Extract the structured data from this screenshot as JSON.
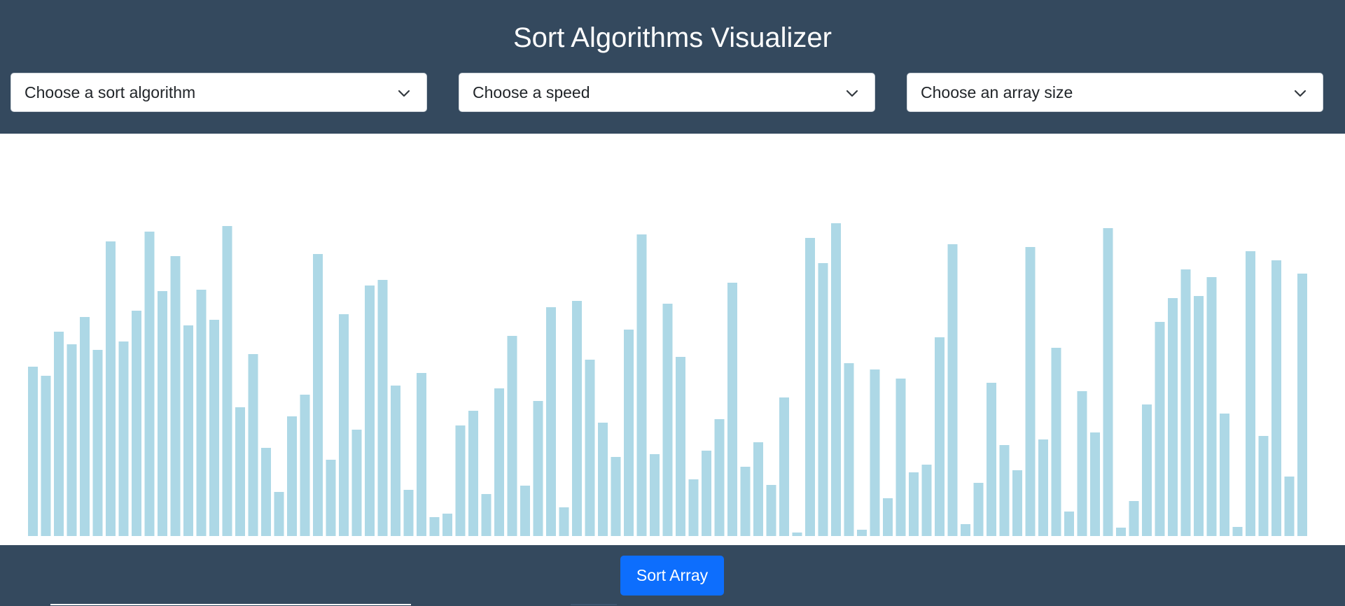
{
  "header": {
    "title": "Sort Algorithms Visualizer"
  },
  "selects": {
    "algorithm": {
      "value": "Choose a sort algorithm"
    },
    "speed": {
      "value": "Choose a speed"
    },
    "size": {
      "value": "Choose an array size"
    }
  },
  "footer": {
    "sort_label": "Sort Array"
  },
  "colors": {
    "header_bg": "#34495e",
    "bar": "#add8e6",
    "button": "#0d6efd"
  },
  "chart_data": {
    "type": "bar",
    "values": [
      242,
      229,
      292,
      274,
      313,
      266,
      421,
      278,
      322,
      435,
      350,
      400,
      301,
      352,
      309,
      443,
      184,
      260,
      126,
      63,
      171,
      202,
      403,
      109,
      317,
      152,
      358,
      366,
      215,
      66,
      233,
      27,
      32,
      158,
      179,
      60,
      211,
      286,
      72,
      193,
      327,
      41,
      336,
      252,
      162,
      113,
      295,
      431,
      117,
      332,
      256,
      81,
      122,
      167,
      362,
      99,
      134,
      73,
      198,
      5,
      426,
      390,
      447,
      247,
      9,
      238,
      54,
      225,
      91,
      102,
      284,
      417,
      17,
      76,
      219,
      130,
      94,
      413,
      138,
      269,
      35,
      207,
      148,
      440,
      12,
      50,
      188,
      306,
      340,
      381,
      343,
      370,
      175,
      13,
      407,
      143,
      394,
      85,
      375
    ]
  }
}
